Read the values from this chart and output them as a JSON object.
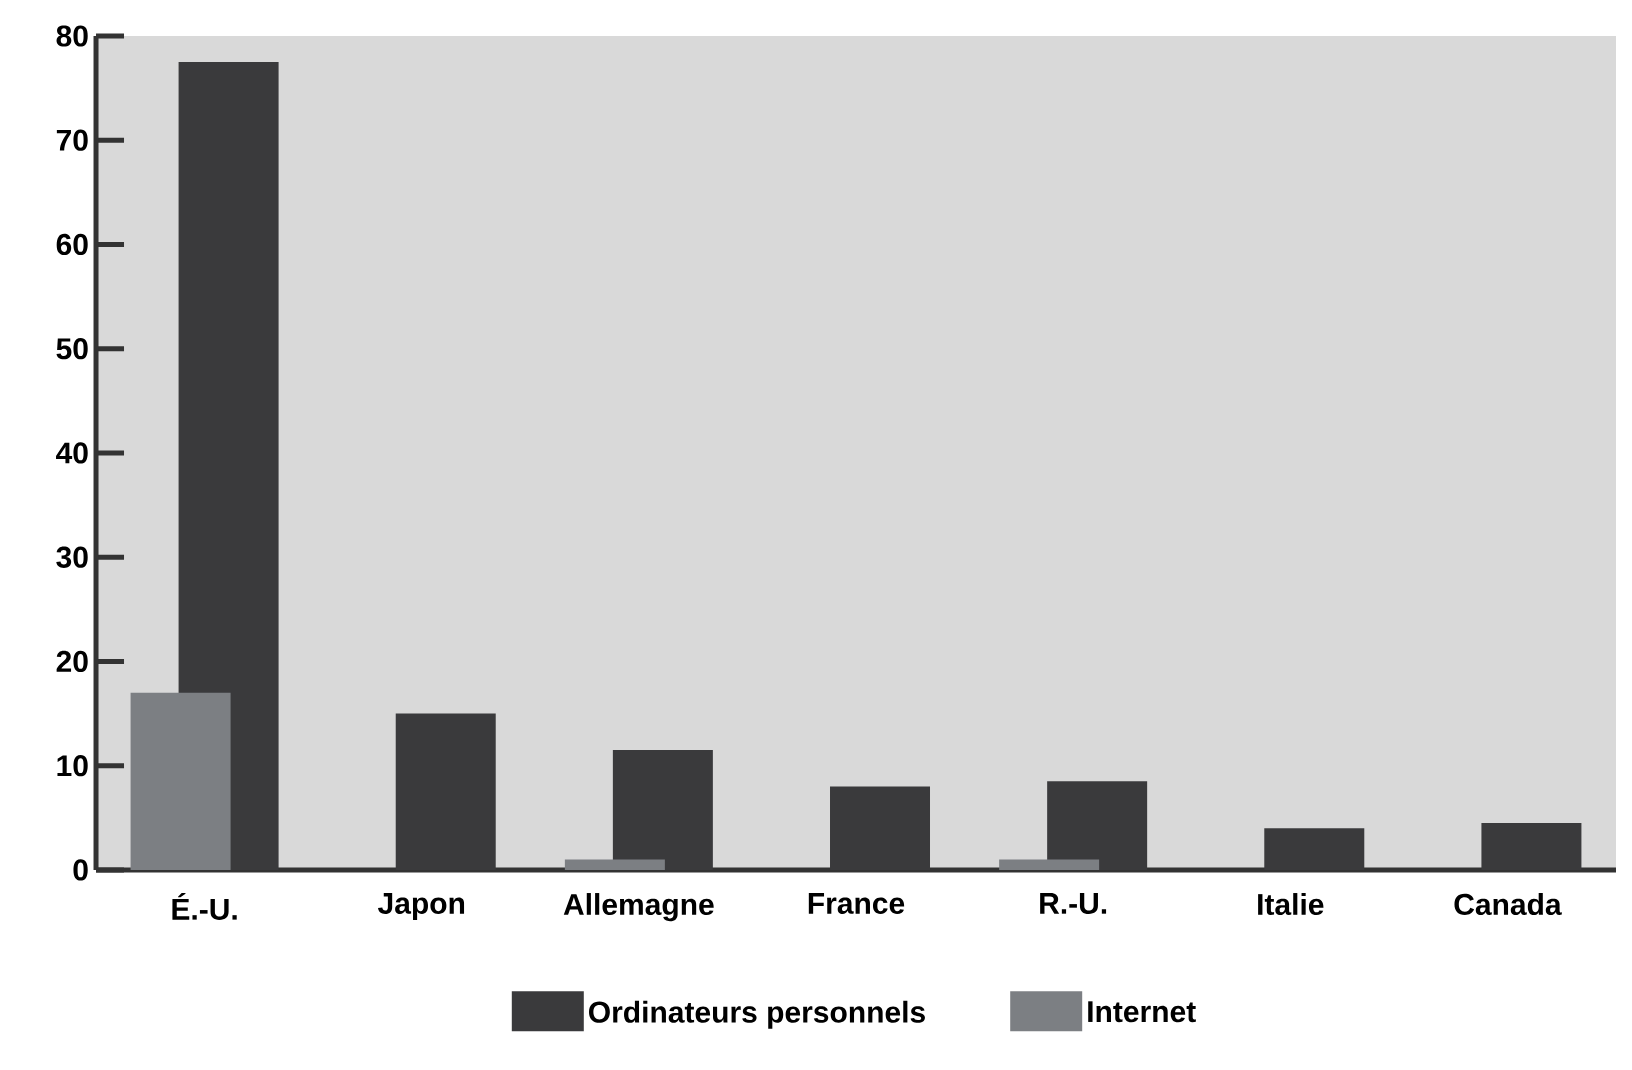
{
  "chart_data": {
    "type": "bar",
    "categories": [
      "É.-U.",
      "Japon",
      "Allemagne",
      "France",
      "R.-U.",
      "Italie",
      "Canada"
    ],
    "series": [
      {
        "name": "Ordinateurs personnels",
        "color": "#3a3a3c",
        "values": [
          77.5,
          15,
          11.5,
          8,
          8.5,
          4,
          4.5
        ]
      },
      {
        "name": "Internet",
        "color": "#7c7f83",
        "values": [
          17,
          0,
          1,
          0,
          1,
          0,
          0
        ]
      }
    ],
    "ylim": [
      0,
      80
    ],
    "yticks": [
      0,
      10,
      20,
      30,
      40,
      50,
      60,
      70,
      80
    ],
    "grid": false,
    "legend": "bottom"
  }
}
